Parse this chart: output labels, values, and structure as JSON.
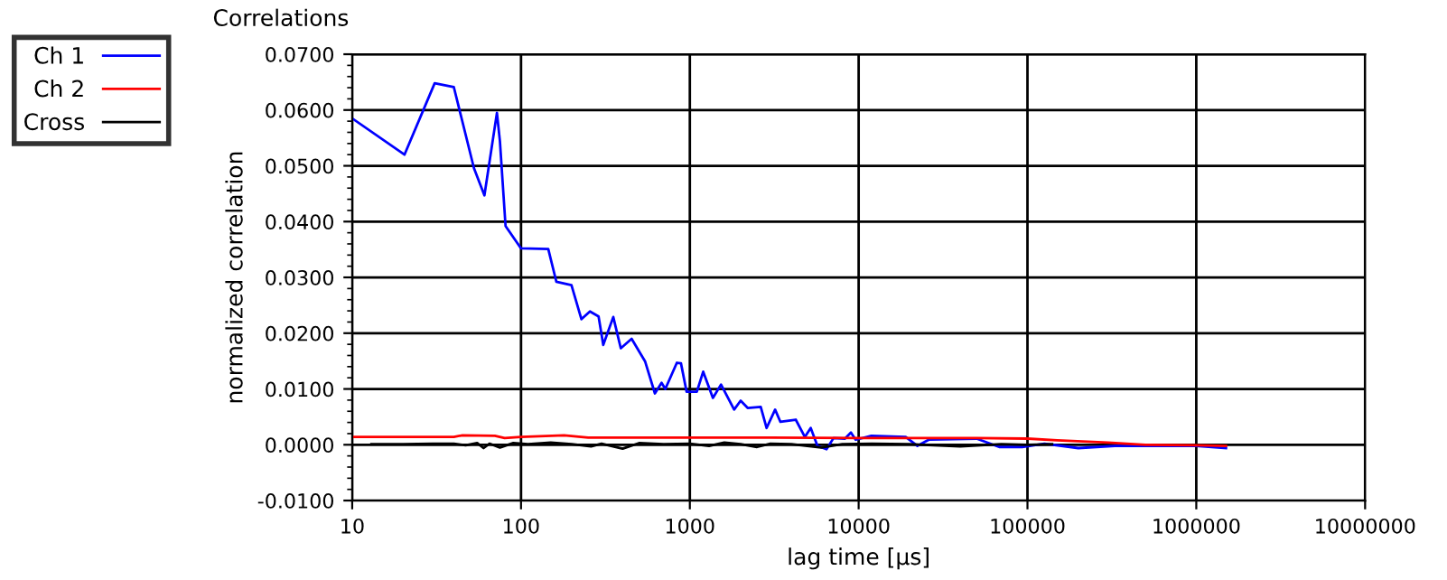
{
  "chart_data": {
    "type": "line",
    "title": "Correlations",
    "xlabel": "lag time [µs]",
    "ylabel": "normalized correlation",
    "log": "x",
    "xlim": [
      10,
      10000000
    ],
    "xticks": [
      10,
      100,
      1000,
      10000,
      100000,
      1000000,
      10000000
    ],
    "ylim": [
      -0.01,
      0.07
    ],
    "yticks": [
      {
        "value": -0.01,
        "label": "-0.0100"
      },
      {
        "value": 0,
        "label": "0.0000"
      },
      {
        "value": 0.01,
        "label": "0.0100"
      },
      {
        "value": 0.02,
        "label": "0.0200"
      },
      {
        "value": 0.03,
        "label": "0.0300"
      },
      {
        "value": 0.04,
        "label": "0.0400"
      },
      {
        "value": 0.05,
        "label": "0.0500"
      },
      {
        "value": 0.06,
        "label": "0.0600"
      },
      {
        "value": 0.07,
        "label": "0.0700"
      }
    ],
    "grid": true,
    "legend": "top left",
    "marker": "none",
    "line_style": "solid",
    "series": [
      {
        "name": "Ch 1",
        "color": "#0000ff",
        "x": [
          10,
          20.4,
          30.8,
          40,
          52.6,
          60.7,
          72,
          75,
          81,
          100,
          145,
          162,
          199,
          228,
          256,
          288,
          307,
          352,
          390,
          452,
          544,
          621,
          680,
          716,
          838,
          886,
          957,
          1100,
          1200,
          1370,
          1530,
          1830,
          2000,
          2200,
          2630,
          2850,
          3200,
          3440,
          4240,
          4800,
          5200,
          5700,
          6450,
          7100,
          8300,
          9000,
          9600,
          11900,
          19000,
          22300,
          26000,
          50000,
          68000,
          93000,
          126000,
          200000,
          330000,
          600000,
          1000000,
          1500000
        ],
        "values": [
          0.0585,
          0.052,
          0.0648,
          0.0641,
          0.0496,
          0.0447,
          0.0595,
          0.0544,
          0.0392,
          0.0352,
          0.0351,
          0.0292,
          0.0286,
          0.0225,
          0.0239,
          0.023,
          0.0179,
          0.0229,
          0.0173,
          0.019,
          0.0149,
          0.0092,
          0.0111,
          0.01,
          0.0147,
          0.0146,
          0.0095,
          0.0095,
          0.0131,
          0.0084,
          0.0108,
          0.0063,
          0.0079,
          0.0066,
          0.0068,
          0.003,
          0.0063,
          0.0041,
          0.0045,
          0.0014,
          0.003,
          -0.0002,
          -0.0008,
          0.0012,
          0.0011,
          0.0022,
          0.0009,
          0.0016,
          0.0014,
          -0.0002,
          0.0009,
          0.0011,
          -0.0004,
          -0.0004,
          0.0002,
          -0.0006,
          -0.0002,
          -0.0002,
          -0.0002,
          -0.0006
        ]
      },
      {
        "name": "Ch 2",
        "color": "#ff0000",
        "x": [
          10,
          40,
          45,
          70,
          80,
          100,
          180,
          250,
          1000,
          3000,
          10000,
          50000,
          100000,
          150000,
          300000,
          500000,
          1000000,
          1500000
        ],
        "values": [
          0.0014,
          0.0014,
          0.0017,
          0.0016,
          0.0012,
          0.0014,
          0.0017,
          0.0013,
          0.0013,
          0.0013,
          0.0012,
          0.0012,
          0.0011,
          0.0008,
          0.0004,
          0.0,
          -0.0001,
          -0.0002
        ]
      },
      {
        "name": "Cross",
        "color": "#000000",
        "x": [
          13,
          20,
          30,
          40,
          47,
          55,
          60,
          65,
          75,
          90,
          110,
          150,
          200,
          260,
          300,
          400,
          500,
          700,
          1000,
          1300,
          1600,
          2000,
          2500,
          3000,
          4000,
          6000,
          8000,
          12000,
          20000,
          40000,
          70000,
          100000,
          140000
        ],
        "values": [
          0.0001,
          0.0001,
          0.0002,
          0.0002,
          -0.0001,
          0.0003,
          -0.0006,
          0.0002,
          -0.0005,
          0.0003,
          0.0001,
          0.0004,
          0.0001,
          -0.0003,
          0.0002,
          -0.0007,
          0.0003,
          0.0001,
          0.0002,
          -0.0002,
          0.0004,
          0.0001,
          -0.0004,
          0.0002,
          0.0001,
          -0.0005,
          0.0001,
          0.0002,
          0.0001,
          -0.0003,
          0.0001,
          0.0,
          0.0001
        ]
      }
    ]
  }
}
